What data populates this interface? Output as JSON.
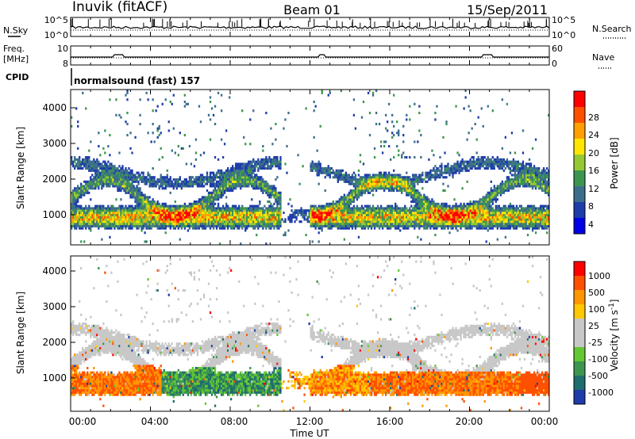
{
  "header": {
    "station": "Inuvik (fitACF)",
    "beam": "Beam 01",
    "date": "15/Sep/2011"
  },
  "side_labels": {
    "nsky": "N.Sky",
    "nsearch": "N.Search",
    "freq_line1": "Freq.",
    "freq_line2": "[MHz]",
    "nave": "Nave",
    "cpid": "CPID",
    "cpid_value": "normalsound (fast) 157"
  },
  "colors": {
    "power_scale": [
      "#0000e6",
      "#1e3caa",
      "#3c6e8c",
      "#3c9650",
      "#96c832",
      "#ffe600",
      "#ffa000",
      "#ff5000",
      "#ff0000"
    ],
    "velocity_scale": [
      "#ff0000",
      "#ff5000",
      "#ff9600",
      "#ffc800",
      "#c8c8c8",
      "#c8c8c8",
      "#64c832",
      "#3c9650",
      "#1e6e6e",
      "#1e3caa"
    ]
  },
  "chart_data": [
    {
      "type": "line",
      "panel": "noise",
      "left_ticks": [
        "10^5",
        "10^0"
      ],
      "right_ticks": [
        "10^5",
        "10^0"
      ],
      "series": [
        {
          "name": "N.Sky",
          "style": "solid"
        },
        {
          "name": "N.Search",
          "style": "dotted"
        }
      ]
    },
    {
      "type": "line",
      "panel": "frequency",
      "left_ticks": [
        "10",
        "8"
      ],
      "right_ticks": [
        "60",
        "0"
      ],
      "series": [
        {
          "name": "Freq.",
          "style": "solid",
          "x": [
            0,
            2.5,
            2.6,
            24
          ],
          "y": [
            10.6,
            10.6,
            10.9,
            10.6
          ]
        },
        {
          "name": "Nave",
          "style": "dotted"
        }
      ]
    },
    {
      "type": "heatmap",
      "panel": "power",
      "ylabel": "Slant Range [km]",
      "ylim": [
        200,
        4600
      ],
      "yticks": [
        "4000",
        "3000",
        "2000",
        "1000"
      ],
      "colorbar_label": "Power [dB]",
      "colorbar_ticks": [
        "28",
        "24",
        "20",
        "16",
        "12",
        "8",
        "4"
      ],
      "colorbar_range": [
        0,
        32
      ]
    },
    {
      "type": "heatmap",
      "panel": "velocity",
      "ylabel": "Slant Range [km]",
      "ylim": [
        200,
        4600
      ],
      "yticks": [
        "4000",
        "3000",
        "2000",
        "1000"
      ],
      "colorbar_label": "Velocity [m s",
      "colorbar_label_suffix": "-1",
      "colorbar_label_close": "]",
      "colorbar_ticks": [
        "1000",
        "500",
        "100",
        "25",
        "-25",
        "-100",
        "-500",
        "-1000"
      ]
    },
    {
      "type": "time-axis",
      "xlabel": "Time UT",
      "xticks": [
        "00:00",
        "04:00",
        "08:00",
        "12:00",
        "16:00",
        "20:00",
        "00:00"
      ],
      "xlim": [
        0,
        24
      ]
    }
  ]
}
